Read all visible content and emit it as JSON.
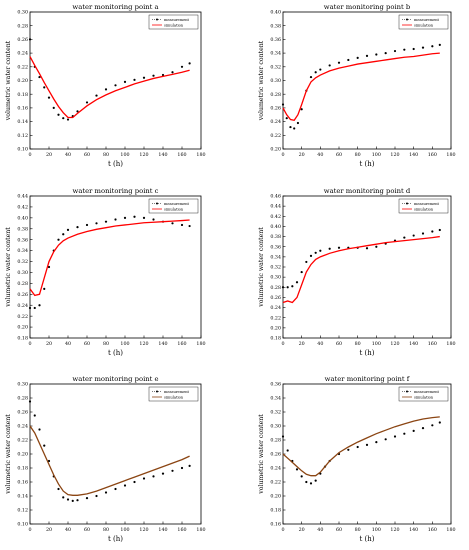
{
  "figure": {
    "meas_color": "#000000",
    "sim_color": "#ff0000",
    "sim_color_brown": "#8b4513"
  },
  "chart_data": [
    {
      "type": "line",
      "title": "water monitoring point a",
      "xlabel": "t (h)",
      "ylabel": "volumetric water content",
      "xlim": [
        0,
        180
      ],
      "ylim": [
        0.1,
        0.3
      ],
      "xticks": [
        "0",
        "20",
        "40",
        "60",
        "80",
        "100",
        "120",
        "140",
        "160",
        "180"
      ],
      "yticks": [
        "0.10",
        "0.12",
        "0.14",
        "0.16",
        "0.18",
        "0.20",
        "0.22",
        "0.24",
        "0.26",
        "0.28",
        "0.30"
      ],
      "legend": [
        "measurement",
        "simulation"
      ],
      "legend_position": "top-right",
      "series": [
        {
          "name": "measurement",
          "style": "points",
          "x": [
            0,
            5,
            10,
            15,
            20,
            25,
            30,
            35,
            40,
            45,
            50,
            60,
            70,
            80,
            90,
            100,
            110,
            120,
            130,
            140,
            150,
            160,
            168
          ],
          "y": [
            0.26,
            0.22,
            0.205,
            0.19,
            0.175,
            0.16,
            0.15,
            0.145,
            0.143,
            0.148,
            0.155,
            0.168,
            0.178,
            0.187,
            0.193,
            0.198,
            0.201,
            0.204,
            0.207,
            0.208,
            0.212,
            0.22,
            0.225
          ]
        },
        {
          "name": "simulation",
          "style": "line",
          "x": [
            0,
            5,
            10,
            15,
            20,
            25,
            30,
            35,
            40,
            45,
            50,
            60,
            70,
            80,
            90,
            100,
            110,
            120,
            130,
            140,
            150,
            160,
            168
          ],
          "y": [
            0.235,
            0.222,
            0.21,
            0.197,
            0.185,
            0.173,
            0.162,
            0.153,
            0.146,
            0.146,
            0.152,
            0.163,
            0.172,
            0.179,
            0.185,
            0.19,
            0.195,
            0.199,
            0.203,
            0.206,
            0.209,
            0.212,
            0.215
          ]
        }
      ]
    },
    {
      "type": "line",
      "title": "water monitoring point b",
      "xlabel": "t (h)",
      "ylabel": "volumetric water content",
      "xlim": [
        0,
        180
      ],
      "ylim": [
        0.2,
        0.4
      ],
      "xticks": [
        "0",
        "20",
        "40",
        "60",
        "80",
        "100",
        "120",
        "140",
        "160",
        "180"
      ],
      "yticks": [
        "0.20",
        "0.22",
        "0.24",
        "0.26",
        "0.28",
        "0.30",
        "0.32",
        "0.34",
        "0.36",
        "0.38",
        "0.40"
      ],
      "legend": [
        "measurement",
        "simulation"
      ],
      "legend_position": "top-right",
      "series": [
        {
          "name": "measurement",
          "style": "points",
          "x": [
            0,
            4,
            8,
            12,
            16,
            20,
            25,
            30,
            35,
            40,
            50,
            60,
            70,
            80,
            90,
            100,
            110,
            120,
            130,
            140,
            150,
            160,
            168
          ],
          "y": [
            0.265,
            0.245,
            0.232,
            0.23,
            0.238,
            0.258,
            0.285,
            0.305,
            0.312,
            0.316,
            0.322,
            0.326,
            0.33,
            0.333,
            0.336,
            0.338,
            0.34,
            0.343,
            0.345,
            0.346,
            0.348,
            0.35,
            0.352
          ]
        },
        {
          "name": "simulation",
          "style": "line",
          "x": [
            0,
            4,
            8,
            12,
            16,
            20,
            25,
            30,
            35,
            40,
            50,
            60,
            70,
            80,
            90,
            100,
            110,
            120,
            130,
            140,
            150,
            160,
            168
          ],
          "y": [
            0.26,
            0.25,
            0.243,
            0.242,
            0.25,
            0.265,
            0.285,
            0.298,
            0.304,
            0.308,
            0.314,
            0.318,
            0.321,
            0.324,
            0.326,
            0.328,
            0.33,
            0.332,
            0.334,
            0.335,
            0.337,
            0.339,
            0.34
          ]
        }
      ]
    },
    {
      "type": "line",
      "title": "water monitoring point c",
      "xlabel": "t (h)",
      "ylabel": "volumetric water content",
      "xlim": [
        0,
        180
      ],
      "ylim": [
        0.18,
        0.44
      ],
      "xticks": [
        "0",
        "20",
        "40",
        "60",
        "80",
        "100",
        "120",
        "140",
        "160",
        "180"
      ],
      "yticks": [
        "0.18",
        "0.20",
        "0.22",
        "0.24",
        "0.26",
        "0.28",
        "0.30",
        "0.32",
        "0.34",
        "0.36",
        "0.38",
        "0.40",
        "0.42",
        "0.44"
      ],
      "legend": [
        "measurement",
        "simulation"
      ],
      "legend_position": "top-right",
      "series": [
        {
          "name": "measurement",
          "style": "points",
          "x": [
            0,
            5,
            10,
            15,
            20,
            25,
            30,
            35,
            40,
            50,
            60,
            70,
            80,
            90,
            100,
            110,
            120,
            130,
            140,
            150,
            160,
            168
          ],
          "y": [
            0.235,
            0.235,
            0.24,
            0.27,
            0.31,
            0.34,
            0.36,
            0.37,
            0.378,
            0.383,
            0.387,
            0.39,
            0.393,
            0.397,
            0.4,
            0.402,
            0.4,
            0.397,
            0.393,
            0.39,
            0.387,
            0.385
          ]
        },
        {
          "name": "simulation",
          "style": "line",
          "x": [
            0,
            5,
            10,
            15,
            20,
            25,
            30,
            35,
            40,
            50,
            60,
            70,
            80,
            90,
            100,
            110,
            120,
            130,
            140,
            150,
            160,
            168
          ],
          "y": [
            0.27,
            0.258,
            0.26,
            0.29,
            0.32,
            0.338,
            0.35,
            0.358,
            0.363,
            0.37,
            0.375,
            0.379,
            0.382,
            0.385,
            0.387,
            0.389,
            0.391,
            0.392,
            0.393,
            0.394,
            0.395,
            0.396
          ]
        }
      ]
    },
    {
      "type": "line",
      "title": "water monitoring point d",
      "xlabel": "t (h)",
      "ylabel": "volumetric water content",
      "xlim": [
        0,
        180
      ],
      "ylim": [
        0.18,
        0.46
      ],
      "xticks": [
        "0",
        "20",
        "40",
        "60",
        "80",
        "100",
        "120",
        "140",
        "160",
        "180"
      ],
      "yticks": [
        "0.18",
        "0.20",
        "0.22",
        "0.24",
        "0.26",
        "0.28",
        "0.30",
        "0.32",
        "0.34",
        "0.36",
        "0.38",
        "0.40",
        "0.42",
        "0.44",
        "0.46"
      ],
      "legend": [
        "measurement",
        "simulation"
      ],
      "legend_position": "top-right",
      "series": [
        {
          "name": "measurement",
          "style": "points",
          "x": [
            0,
            5,
            10,
            15,
            20,
            25,
            30,
            35,
            40,
            50,
            60,
            70,
            80,
            90,
            100,
            110,
            120,
            130,
            140,
            150,
            160,
            168
          ],
          "y": [
            0.28,
            0.28,
            0.282,
            0.29,
            0.31,
            0.33,
            0.342,
            0.348,
            0.352,
            0.356,
            0.358,
            0.358,
            0.358,
            0.357,
            0.36,
            0.366,
            0.372,
            0.378,
            0.382,
            0.386,
            0.39,
            0.393
          ]
        },
        {
          "name": "simulation",
          "style": "line",
          "x": [
            0,
            5,
            10,
            15,
            20,
            25,
            30,
            35,
            40,
            50,
            60,
            70,
            80,
            90,
            100,
            110,
            120,
            130,
            140,
            150,
            160,
            168
          ],
          "y": [
            0.25,
            0.253,
            0.25,
            0.26,
            0.285,
            0.31,
            0.325,
            0.335,
            0.34,
            0.347,
            0.352,
            0.356,
            0.359,
            0.362,
            0.365,
            0.368,
            0.37,
            0.372,
            0.374,
            0.376,
            0.378,
            0.38
          ]
        }
      ]
    },
    {
      "type": "line",
      "title": "water monitoring point e",
      "xlabel": "t (h)",
      "ylabel": "volumetric water content",
      "xlim": [
        0,
        180
      ],
      "ylim": [
        0.1,
        0.3
      ],
      "xticks": [
        "0",
        "20",
        "40",
        "60",
        "80",
        "100",
        "120",
        "140",
        "160",
        "180"
      ],
      "yticks": [
        "0.10",
        "0.12",
        "0.14",
        "0.16",
        "0.18",
        "0.20",
        "0.22",
        "0.24",
        "0.26",
        "0.28",
        "0.30"
      ],
      "legend": [
        "measurement",
        "simulation"
      ],
      "legend_position": "top-right",
      "series": [
        {
          "name": "measurement",
          "style": "points",
          "x": [
            0,
            5,
            10,
            15,
            20,
            25,
            30,
            35,
            40,
            45,
            50,
            60,
            70,
            80,
            90,
            100,
            110,
            120,
            130,
            140,
            150,
            160,
            168
          ],
          "y": [
            0.275,
            0.255,
            0.235,
            0.212,
            0.19,
            0.168,
            0.15,
            0.138,
            0.135,
            0.133,
            0.134,
            0.137,
            0.14,
            0.145,
            0.15,
            0.155,
            0.16,
            0.165,
            0.168,
            0.172,
            0.176,
            0.18,
            0.183
          ]
        },
        {
          "name": "simulation",
          "style": "line",
          "x": [
            0,
            5,
            10,
            15,
            20,
            25,
            30,
            35,
            40,
            45,
            50,
            60,
            70,
            80,
            90,
            100,
            110,
            120,
            130,
            140,
            150,
            160,
            168
          ],
          "y": [
            0.24,
            0.23,
            0.215,
            0.2,
            0.185,
            0.17,
            0.157,
            0.147,
            0.142,
            0.141,
            0.141,
            0.143,
            0.147,
            0.152,
            0.157,
            0.162,
            0.167,
            0.172,
            0.177,
            0.182,
            0.187,
            0.192,
            0.197
          ]
        }
      ]
    },
    {
      "type": "line",
      "title": "water monitoring point f",
      "xlabel": "t (h)",
      "ylabel": "volumetric water content",
      "xlim": [
        0,
        180
      ],
      "ylim": [
        0.16,
        0.36
      ],
      "xticks": [
        "0",
        "20",
        "40",
        "60",
        "80",
        "100",
        "120",
        "140",
        "160",
        "180"
      ],
      "yticks": [
        "0.16",
        "0.18",
        "0.20",
        "0.22",
        "0.24",
        "0.26",
        "0.28",
        "0.30",
        "0.32",
        "0.34",
        "0.36"
      ],
      "legend": [
        "measurement",
        "simulation"
      ],
      "legend_position": "top-right",
      "series": [
        {
          "name": "measurement",
          "style": "points",
          "x": [
            0,
            5,
            10,
            15,
            20,
            25,
            30,
            35,
            40,
            45,
            50,
            60,
            70,
            80,
            90,
            100,
            110,
            120,
            130,
            140,
            150,
            160,
            168
          ],
          "y": [
            0.285,
            0.265,
            0.25,
            0.238,
            0.228,
            0.22,
            0.218,
            0.222,
            0.232,
            0.242,
            0.25,
            0.26,
            0.266,
            0.27,
            0.273,
            0.277,
            0.281,
            0.285,
            0.289,
            0.293,
            0.297,
            0.301,
            0.305
          ]
        },
        {
          "name": "simulation",
          "style": "line",
          "x": [
            0,
            5,
            10,
            15,
            20,
            25,
            30,
            35,
            40,
            45,
            50,
            60,
            70,
            80,
            90,
            100,
            110,
            120,
            130,
            140,
            150,
            160,
            168
          ],
          "y": [
            0.26,
            0.254,
            0.248,
            0.242,
            0.236,
            0.231,
            0.229,
            0.229,
            0.234,
            0.242,
            0.25,
            0.262,
            0.27,
            0.277,
            0.283,
            0.289,
            0.294,
            0.299,
            0.303,
            0.307,
            0.31,
            0.312,
            0.313
          ]
        }
      ]
    }
  ]
}
